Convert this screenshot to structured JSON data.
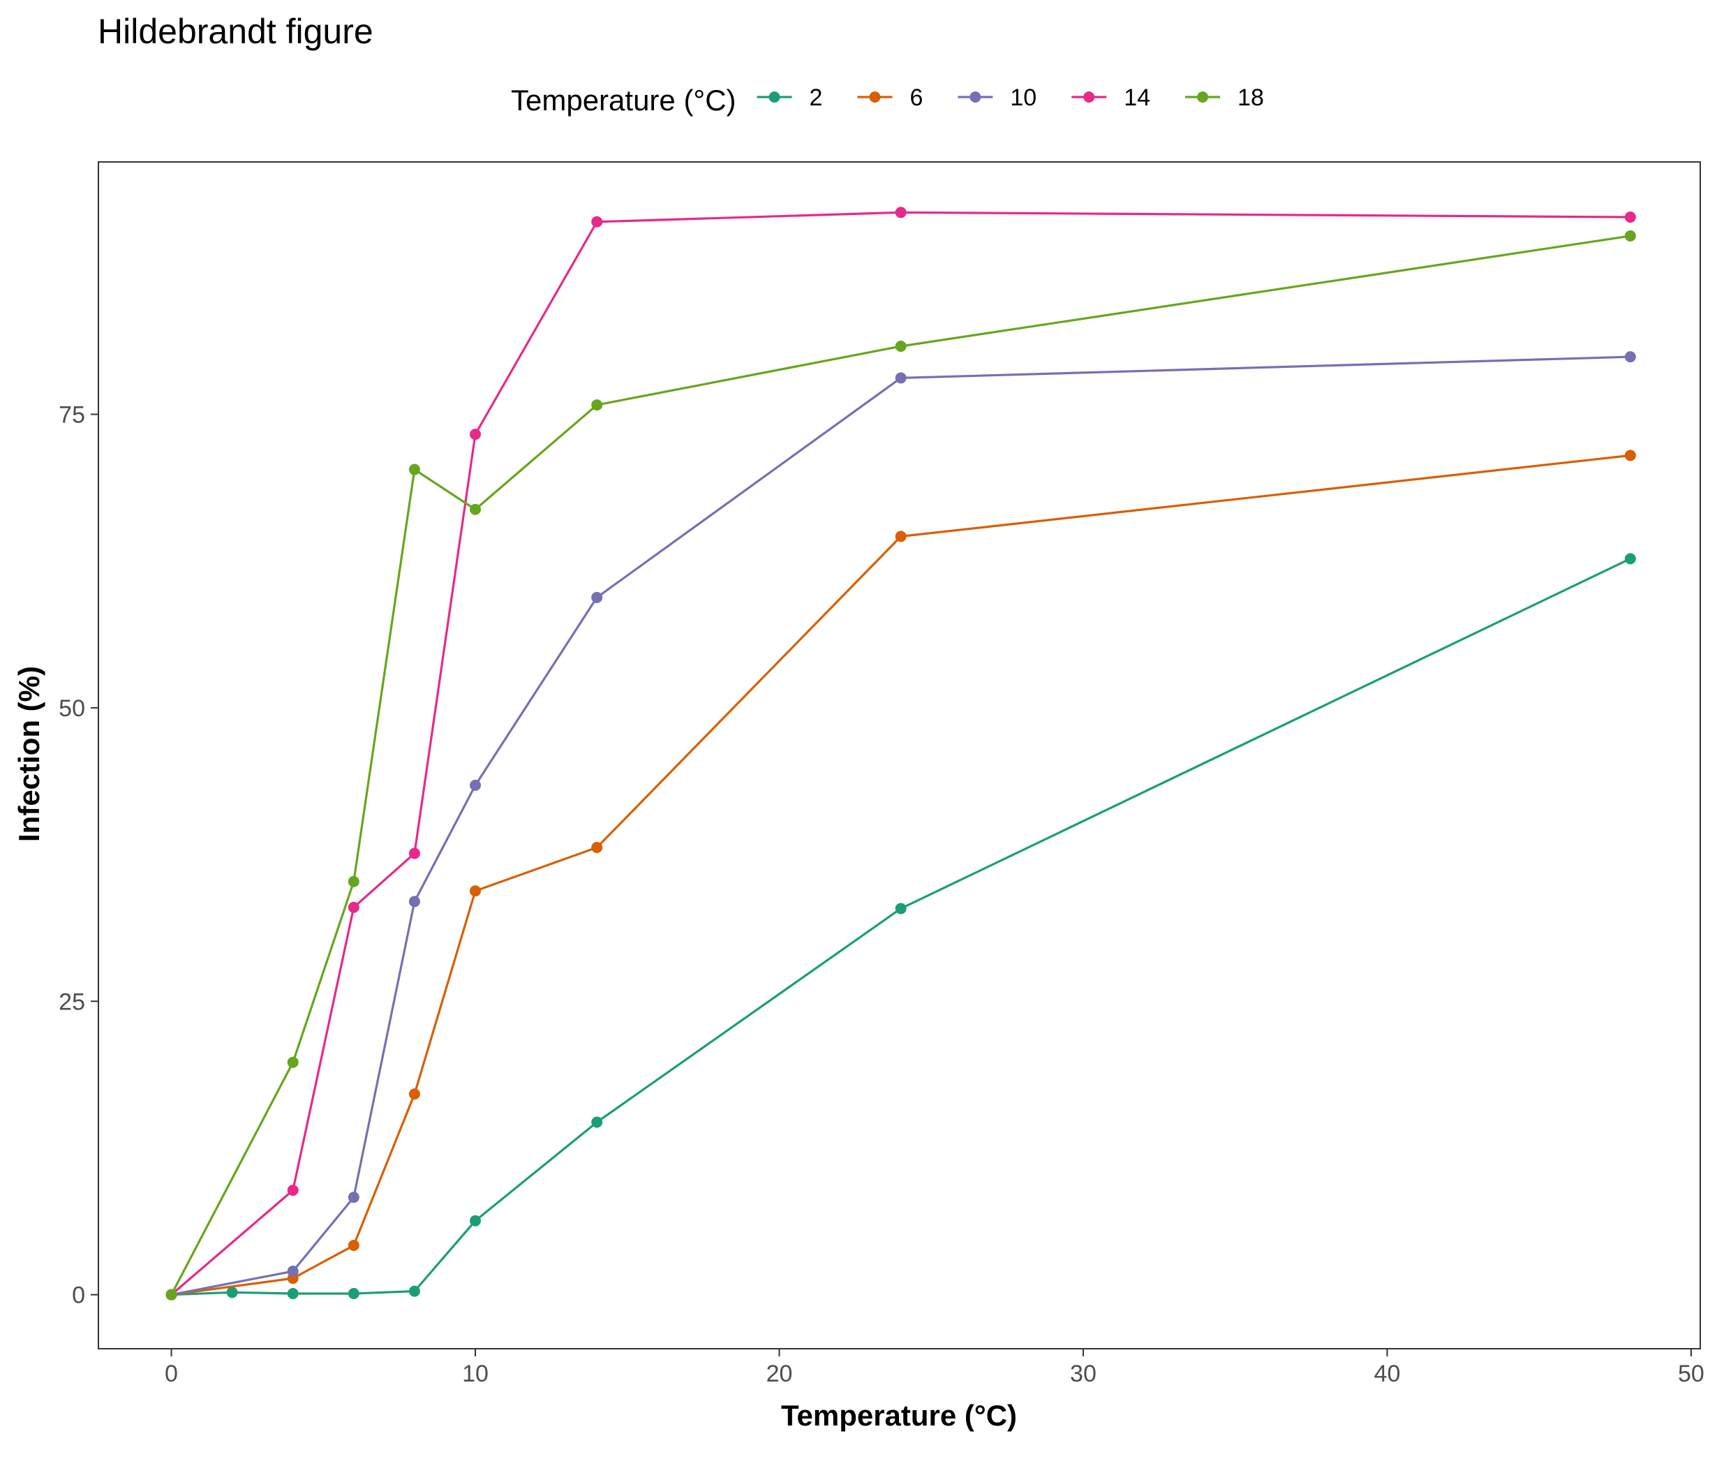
{
  "chart_data": {
    "type": "line",
    "title": "Hildebrandt figure",
    "xlabel": "Temperature (°C)",
    "ylabel": "Infection (%)",
    "xlim": [
      -2.4,
      50.3
    ],
    "ylim": [
      -4.6,
      96.5
    ],
    "xticks": [
      0,
      10,
      20,
      30,
      40,
      50
    ],
    "xtick_labels": [
      "0",
      "10",
      "20",
      "30",
      "40",
      "50"
    ],
    "yticks": [
      0,
      25,
      50,
      75
    ],
    "ytick_labels": [
      "0",
      "25",
      "50",
      "75"
    ],
    "grid": false,
    "legend": {
      "title": "Temperature (°C)",
      "position": "top"
    },
    "series": [
      {
        "name": "2",
        "color": "#1b9e77",
        "x": [
          0,
          2,
          4,
          6,
          8,
          10,
          14,
          24,
          48
        ],
        "y": [
          0.0,
          0.2,
          0.1,
          0.1,
          0.3,
          6.3,
          14.7,
          32.9,
          62.7
        ]
      },
      {
        "name": "6",
        "color": "#d95f02",
        "x": [
          0,
          4,
          6,
          8,
          10,
          14,
          24,
          48
        ],
        "y": [
          0.0,
          1.4,
          4.2,
          17.1,
          34.4,
          38.1,
          64.6,
          71.5
        ]
      },
      {
        "name": "10",
        "color": "#7570b3",
        "x": [
          0,
          4,
          6,
          8,
          10,
          14,
          24,
          48
        ],
        "y": [
          0.0,
          2.0,
          8.3,
          33.5,
          43.4,
          59.4,
          78.1,
          79.9
        ]
      },
      {
        "name": "14",
        "color": "#e7298a",
        "x": [
          0,
          4,
          6,
          8,
          10,
          14,
          24,
          48
        ],
        "y": [
          0.0,
          8.9,
          33.0,
          37.6,
          73.3,
          91.4,
          92.2,
          91.8
        ]
      },
      {
        "name": "18",
        "color": "#66a61e",
        "x": [
          0,
          4,
          6,
          8,
          10,
          14,
          24,
          48
        ],
        "y": [
          0.0,
          19.8,
          35.2,
          70.3,
          66.9,
          75.8,
          80.8,
          90.2
        ]
      }
    ]
  }
}
